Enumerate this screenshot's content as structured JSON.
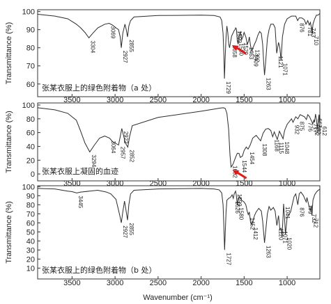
{
  "chart_data": [
    {
      "type": "line",
      "title": "张某衣服上的绿色附着物（a 处）",
      "xlim": [
        3900,
        620
      ],
      "ylim": [
        53,
        101
      ],
      "yticks": [
        60,
        70,
        80,
        90,
        100
      ],
      "xticks": [
        3500,
        3000,
        2500,
        2000,
        1500,
        1000
      ],
      "x": [
        3900,
        3700,
        3550,
        3450,
        3400,
        3350,
        3304,
        3260,
        3200,
        3120,
        3069,
        3030,
        2990,
        2960,
        2940,
        2927,
        2910,
        2885,
        2870,
        2855,
        2840,
        2820,
        2780,
        2500,
        2000,
        1850,
        1780,
        1760,
        1745,
        1735,
        1729,
        1720,
        1710,
        1700,
        1690,
        1680,
        1670,
        1658,
        1645,
        1630,
        1615,
        1605,
        1599,
        1590,
        1580,
        1570,
        1560,
        1545,
        1529,
        1515,
        1500,
        1480,
        1463,
        1450,
        1440,
        1425,
        1409,
        1400,
        1392,
        1380,
        1360,
        1340,
        1320,
        1300,
        1285,
        1270,
        1263,
        1250,
        1230,
        1210,
        1190,
        1160,
        1140,
        1121,
        1100,
        1085,
        1071,
        1055,
        1030,
        1000,
        950,
        900,
        878,
        860,
        830,
        800,
        781,
        760,
        743,
        730,
        720,
        710,
        700,
        680,
        660,
        640,
        620
      ],
      "y": [
        98.5,
        97.5,
        96,
        93,
        91,
        88.5,
        85.5,
        88,
        91,
        93,
        93.5,
        92.5,
        91,
        90,
        86,
        80,
        88,
        93,
        90,
        86,
        92,
        95,
        97,
        97.8,
        98,
        97.8,
        97,
        95,
        88,
        76,
        63,
        75,
        86,
        92,
        88.5,
        82.5,
        80,
        83,
        86.5,
        88,
        89.5,
        90,
        91,
        90.5,
        84,
        82,
        86,
        89,
        84.5,
        86,
        88.5,
        86,
        82,
        83.5,
        86,
        81,
        78,
        80,
        80.5,
        82,
        84,
        87,
        89,
        88,
        82,
        70,
        65,
        72,
        85,
        90,
        93,
        93,
        91,
        77,
        83,
        80,
        73,
        86,
        93,
        96,
        97.5,
        97.5,
        95,
        96.5,
        96.5,
        95.5,
        93,
        95,
        92.5,
        94,
        91.5,
        88,
        93,
        96,
        98,
        98,
        99
      ],
      "peak_labels": [
        "3304",
        "3069",
        "2927",
        "2855",
        "1729",
        "1658",
        "1580",
        "1599",
        "1529",
        "1463",
        "1409",
        "1392",
        "1263",
        "1121",
        "1071",
        "876",
        "781",
        "743",
        "710"
      ],
      "arrow_at": 1658
    },
    {
      "type": "line",
      "title": "张某衣服上凝固的血迹",
      "xlim": [
        3900,
        620
      ],
      "ylim": [
        -10,
        103
      ],
      "yticks": [
        0,
        20,
        40,
        60,
        80,
        100
      ],
      "xticks": [
        3500,
        3000,
        2500,
        2000,
        1500,
        1000
      ],
      "x": [
        3900,
        3700,
        3550,
        3450,
        3400,
        3350,
        3294,
        3240,
        3180,
        3120,
        3064,
        3030,
        3000,
        2960,
        2940,
        2922,
        2900,
        2880,
        2852,
        2830,
        2800,
        2500,
        2000,
        1850,
        1780,
        1740,
        1720,
        1700,
        1680,
        1665,
        1652,
        1630,
        1600,
        1580,
        1560,
        1544,
        1520,
        1500,
        1475,
        1454,
        1430,
        1400,
        1360,
        1308,
        1280,
        1250,
        1220,
        1190,
        1168,
        1150,
        1115,
        1090,
        1048,
        1030,
        1000,
        950,
        932,
        900,
        875,
        850,
        800,
        776,
        760,
        740,
        717,
        702,
        690,
        682,
        670,
        660,
        650,
        640,
        630,
        620
      ],
      "y": [
        96,
        93,
        88,
        78,
        62,
        45,
        32,
        42,
        52,
        55,
        52,
        47,
        45,
        42,
        54,
        66,
        55,
        45,
        39,
        55,
        70,
        82,
        91,
        94,
        95.5,
        96,
        95,
        88,
        65,
        28,
        10,
        14,
        24,
        30,
        30,
        24,
        26,
        34,
        39,
        36,
        42,
        52,
        56,
        48,
        59,
        65,
        66,
        63,
        54,
        61,
        50,
        62,
        51,
        63,
        72,
        80,
        75,
        83,
        80,
        86,
        83,
        79,
        86,
        83,
        77,
        73,
        78,
        75,
        87,
        79,
        66,
        75,
        86,
        73
      ],
      "peak_labels": [
        "3294",
        "3064",
        "2957",
        "2922",
        "2852",
        "1652",
        "1544",
        "1454",
        "1308",
        "1168",
        "1115",
        "1048",
        "932",
        "875",
        "776",
        "717",
        "702",
        "682",
        "667",
        "612"
      ],
      "arrow_at": 1652
    },
    {
      "type": "line",
      "title": "张某衣服上的绿色附着物（b 处）",
      "xlim": [
        3900,
        620
      ],
      "ylim": [
        -2,
        101
      ],
      "yticks": [
        10,
        20,
        30,
        40,
        50,
        60,
        70,
        80,
        90,
        100
      ],
      "xticks": [
        3500,
        3000,
        2500,
        2000,
        1500,
        1000
      ],
      "x": [
        3900,
        3700,
        3550,
        3500,
        3445,
        3400,
        3300,
        3200,
        3100,
        3050,
        2990,
        2960,
        2945,
        2927,
        2910,
        2890,
        2870,
        2855,
        2840,
        2820,
        2780,
        2500,
        2000,
        1850,
        1790,
        1760,
        1745,
        1735,
        1727,
        1720,
        1710,
        1700,
        1680,
        1660,
        1640,
        1626,
        1615,
        1605,
        1599,
        1590,
        1580,
        1570,
        1555,
        1530,
        1500,
        1480,
        1465,
        1452,
        1440,
        1425,
        1412,
        1400,
        1380,
        1360,
        1330,
        1300,
        1285,
        1263,
        1245,
        1230,
        1210,
        1190,
        1160,
        1140,
        1120,
        1100,
        1085,
        1071,
        1060,
        1050,
        1041,
        1030,
        1020,
        1000,
        960,
        920,
        900,
        876,
        860,
        840,
        810,
        779,
        770,
        760,
        745,
        732,
        720,
        712,
        700,
        680,
        660,
        640,
        620
      ],
      "y": [
        98,
        97.5,
        95,
        94.5,
        93,
        94,
        95,
        96,
        94,
        92,
        86,
        74,
        68,
        60,
        72,
        84,
        72,
        63,
        80,
        92,
        96,
        97.5,
        98,
        97.5,
        96.5,
        93,
        80,
        55,
        30,
        48,
        72,
        85,
        87,
        88,
        91,
        87,
        92,
        94,
        95,
        90,
        80,
        86,
        89,
        85,
        83,
        80,
        73,
        69,
        72,
        60,
        58,
        61,
        68,
        72,
        76,
        73,
        62,
        38,
        55,
        70,
        78,
        74,
        77,
        73,
        57,
        68,
        53,
        54,
        45,
        62,
        81,
        65,
        47,
        66,
        72,
        89,
        92,
        80,
        92,
        94,
        90,
        83,
        88,
        84,
        78,
        73,
        79,
        68,
        85,
        91,
        94,
        96,
        97
      ],
      "peak_labels": [
        "3445",
        "2927",
        "2855",
        "1727",
        "1626",
        "1599",
        "1580",
        "1452",
        "1412",
        "1263",
        "1120",
        "1071",
        "1041",
        "1020",
        "876",
        "779",
        "732",
        "712"
      ]
    }
  ],
  "axes": {
    "ylabel": "Transmittance (%)",
    "xlabel": "Wavenumber (cm⁻¹)"
  },
  "colors": {
    "line": "#2b2b2b",
    "arrow": "#e11b1b",
    "axis": "#333333"
  }
}
